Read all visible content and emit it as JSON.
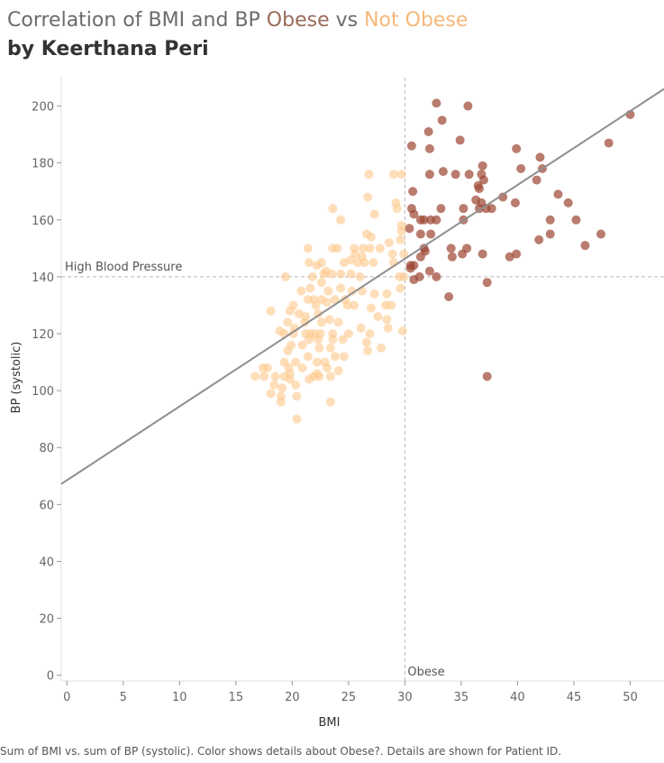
{
  "title": {
    "prefix": "Correlation of BMI and BP ",
    "obese_word": "Obese",
    "middle": " vs ",
    "not_obese_word": "Not Obese",
    "byline": "by Keerthana Peri"
  },
  "footer": "Sum of BMI vs. sum of BP (systolic).  Color shows details about Obese?.  Details are shown for Patient ID.",
  "colors": {
    "obese": "#9e4a36",
    "not_obese": "#fdc98e",
    "trend_line": "#8f8f8f",
    "reference_line": "#b8b8b8",
    "axis_text": "#666666"
  },
  "chart_data": {
    "type": "scatter",
    "title": "",
    "xlabel": "BMI",
    "ylabel": "BP (systolic)",
    "xlim": [
      -0.5,
      53
    ],
    "ylim": [
      -2,
      210
    ],
    "xticks": [
      0,
      5,
      10,
      15,
      20,
      25,
      30,
      35,
      40,
      45,
      50
    ],
    "yticks": [
      0,
      20,
      40,
      60,
      80,
      100,
      120,
      140,
      160,
      180,
      200
    ],
    "grid": false,
    "reference_lines": [
      {
        "axis": "y",
        "value": 140,
        "label": "High Blood Pressure"
      },
      {
        "axis": "x",
        "value": 30,
        "label": "Obese"
      }
    ],
    "trend_line": {
      "x0": -0.5,
      "y0": 67.2,
      "x1": 53,
      "y1": 206
    },
    "series": [
      {
        "name": "Obese",
        "points": [
          [
            32.8,
            201
          ],
          [
            35.6,
            200
          ],
          [
            33.3,
            195
          ],
          [
            32.1,
            191
          ],
          [
            50.0,
            197
          ],
          [
            30.6,
            186
          ],
          [
            32.2,
            185
          ],
          [
            34.9,
            188
          ],
          [
            39.9,
            185
          ],
          [
            48.1,
            187
          ],
          [
            42.0,
            182
          ],
          [
            36.9,
            179
          ],
          [
            42.2,
            178
          ],
          [
            40.3,
            178
          ],
          [
            32.2,
            176
          ],
          [
            33.4,
            177
          ],
          [
            34.5,
            176
          ],
          [
            35.7,
            176
          ],
          [
            36.8,
            176
          ],
          [
            37.0,
            174
          ],
          [
            41.7,
            174
          ],
          [
            30.7,
            170
          ],
          [
            36.5,
            172
          ],
          [
            36.6,
            171
          ],
          [
            38.7,
            168
          ],
          [
            43.6,
            169
          ],
          [
            36.3,
            167
          ],
          [
            36.8,
            166
          ],
          [
            44.5,
            166
          ],
          [
            30.6,
            164
          ],
          [
            33.2,
            164
          ],
          [
            35.2,
            164
          ],
          [
            36.6,
            164
          ],
          [
            37.2,
            164
          ],
          [
            37.7,
            164
          ],
          [
            30.8,
            162
          ],
          [
            39.8,
            166
          ],
          [
            31.4,
            160
          ],
          [
            31.7,
            160
          ],
          [
            32.3,
            160
          ],
          [
            32.8,
            160
          ],
          [
            35.2,
            160
          ],
          [
            42.9,
            160
          ],
          [
            45.2,
            160
          ],
          [
            30.4,
            157
          ],
          [
            31.4,
            155
          ],
          [
            32.3,
            155
          ],
          [
            31.7,
            150
          ],
          [
            31.8,
            149
          ],
          [
            35.5,
            150
          ],
          [
            41.9,
            153
          ],
          [
            42.9,
            155
          ],
          [
            47.4,
            155
          ],
          [
            34.1,
            150
          ],
          [
            31.4,
            147
          ],
          [
            30.5,
            144
          ],
          [
            30.8,
            144
          ],
          [
            30.5,
            143
          ],
          [
            32.2,
            142
          ],
          [
            34.2,
            147
          ],
          [
            35.1,
            148
          ],
          [
            36.9,
            148
          ],
          [
            39.3,
            147
          ],
          [
            39.9,
            148
          ],
          [
            46.0,
            151
          ],
          [
            30.8,
            139
          ],
          [
            31.3,
            140
          ],
          [
            32.8,
            140
          ],
          [
            37.3,
            138
          ],
          [
            33.9,
            133
          ],
          [
            37.3,
            105
          ]
        ]
      },
      {
        "name": "Not Obese",
        "points": [
          [
            26.8,
            176
          ],
          [
            29.0,
            176
          ],
          [
            29.7,
            176
          ],
          [
            26.7,
            168
          ],
          [
            29.2,
            166
          ],
          [
            29.3,
            164
          ],
          [
            23.6,
            164
          ],
          [
            27.3,
            162
          ],
          [
            24.3,
            160
          ],
          [
            29.7,
            158
          ],
          [
            29.7,
            156
          ],
          [
            29.6,
            153
          ],
          [
            26.6,
            155
          ],
          [
            27.0,
            154
          ],
          [
            28.6,
            152
          ],
          [
            27.8,
            150
          ],
          [
            25.5,
            150
          ],
          [
            26.3,
            150
          ],
          [
            26.9,
            150
          ],
          [
            23.6,
            150
          ],
          [
            24.0,
            150
          ],
          [
            21.4,
            150
          ],
          [
            25.6,
            148
          ],
          [
            26.2,
            147
          ],
          [
            28.9,
            148
          ],
          [
            29.9,
            148
          ],
          [
            25.2,
            146
          ],
          [
            24.6,
            145
          ],
          [
            25.8,
            145
          ],
          [
            26.4,
            145
          ],
          [
            27.2,
            145
          ],
          [
            29.0,
            145
          ],
          [
            21.5,
            145
          ],
          [
            22.2,
            144
          ],
          [
            22.6,
            145
          ],
          [
            22.8,
            141
          ],
          [
            23.0,
            142
          ],
          [
            23.5,
            141
          ],
          [
            24.3,
            141
          ],
          [
            25.2,
            141
          ],
          [
            26.0,
            140
          ],
          [
            19.4,
            140
          ],
          [
            21.8,
            140
          ],
          [
            29.9,
            140
          ],
          [
            29.5,
            140
          ],
          [
            22.6,
            138
          ],
          [
            24.3,
            136
          ],
          [
            25.3,
            135
          ],
          [
            26.2,
            135
          ],
          [
            21.6,
            136
          ],
          [
            23.2,
            135
          ],
          [
            29.6,
            136
          ],
          [
            20.8,
            135
          ],
          [
            27.3,
            134
          ],
          [
            28.4,
            134
          ],
          [
            21.4,
            132
          ],
          [
            21.9,
            132
          ],
          [
            22.6,
            132
          ],
          [
            23.8,
            132
          ],
          [
            24.7,
            132
          ],
          [
            22.1,
            130
          ],
          [
            23.1,
            131
          ],
          [
            25.5,
            130
          ],
          [
            24.9,
            130
          ],
          [
            20.1,
            130
          ],
          [
            28.3,
            130
          ],
          [
            28.8,
            130
          ],
          [
            27.0,
            129
          ],
          [
            18.1,
            128
          ],
          [
            19.8,
            128
          ],
          [
            20.6,
            127
          ],
          [
            22.3,
            127
          ],
          [
            21.2,
            126
          ],
          [
            23.3,
            125
          ],
          [
            27.6,
            126
          ],
          [
            28.4,
            125
          ],
          [
            19.6,
            124
          ],
          [
            21.1,
            124
          ],
          [
            22.6,
            124
          ],
          [
            24.1,
            124
          ],
          [
            20.2,
            122
          ],
          [
            26.1,
            122
          ],
          [
            28.5,
            122
          ],
          [
            29.8,
            121
          ],
          [
            18.9,
            121
          ],
          [
            19.3,
            120
          ],
          [
            20.1,
            120
          ],
          [
            21.2,
            120
          ],
          [
            21.6,
            120
          ],
          [
            22.0,
            120
          ],
          [
            22.5,
            120
          ],
          [
            23.6,
            120
          ],
          [
            25.0,
            120
          ],
          [
            26.9,
            120
          ],
          [
            21.5,
            118
          ],
          [
            22.3,
            118
          ],
          [
            23.6,
            118
          ],
          [
            24.5,
            118
          ],
          [
            26.6,
            117
          ],
          [
            19.9,
            116
          ],
          [
            20.9,
            116
          ],
          [
            22.4,
            115
          ],
          [
            23.4,
            115
          ],
          [
            27.9,
            115
          ],
          [
            26.7,
            114
          ],
          [
            19.6,
            114
          ],
          [
            21.4,
            112
          ],
          [
            23.8,
            112
          ],
          [
            24.6,
            112
          ],
          [
            20.3,
            110
          ],
          [
            22.2,
            110
          ],
          [
            22.9,
            110
          ],
          [
            19.3,
            110
          ],
          [
            19.7,
            108
          ],
          [
            20.9,
            108
          ],
          [
            23.1,
            108
          ],
          [
            17.4,
            108
          ],
          [
            17.8,
            108
          ],
          [
            24.1,
            107
          ],
          [
            19.8,
            106
          ],
          [
            22.2,
            106
          ],
          [
            16.7,
            105
          ],
          [
            17.5,
            105
          ],
          [
            18.5,
            105
          ],
          [
            19.3,
            105
          ],
          [
            21.9,
            105
          ],
          [
            22.4,
            105
          ],
          [
            23.4,
            105
          ],
          [
            19.8,
            104
          ],
          [
            21.5,
            104
          ],
          [
            20.3,
            102
          ],
          [
            18.4,
            102
          ],
          [
            19.1,
            101
          ],
          [
            18.1,
            99
          ],
          [
            20.4,
            98
          ],
          [
            19.0,
            98
          ],
          [
            23.4,
            96
          ],
          [
            20.4,
            90
          ],
          [
            19.0,
            96
          ]
        ]
      }
    ]
  }
}
